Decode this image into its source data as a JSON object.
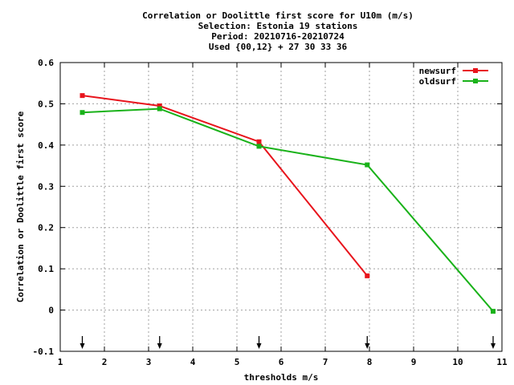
{
  "chart_data": {
    "type": "line",
    "title_lines": [
      "Correlation or Doolittle first score  for U10m (m/s)",
      "Selection: Estonia     19 stations",
      "Period: 20210716-20210724",
      "Used {00,12} + 27 30 33 36"
    ],
    "xlabel": "thresholds m/s",
    "ylabel": "Correlation or Doolittle first score",
    "xlim": [
      1,
      11
    ],
    "ylim": [
      -0.1,
      0.6
    ],
    "x_ticks": [
      1,
      2,
      3,
      4,
      5,
      6,
      7,
      8,
      9,
      10,
      11
    ],
    "y_ticks": [
      -0.1,
      0,
      0.1,
      0.2,
      0.3,
      0.4,
      0.5,
      0.6
    ],
    "y_tick_labels": [
      "-0.1",
      "0",
      "0.1",
      "0.2",
      "0.3",
      "0.4",
      "0.5",
      "0.6"
    ],
    "grid": true,
    "legend_position": "top-right",
    "series": [
      {
        "name": "newsurf",
        "color": "#e8141c",
        "x": [
          1.5,
          3.25,
          5.5,
          7.95
        ],
        "y": [
          0.52,
          0.495,
          0.408,
          0.083
        ]
      },
      {
        "name": "oldsurf",
        "color": "#19b219",
        "x": [
          1.5,
          3.25,
          5.5,
          7.95,
          10.8
        ],
        "y": [
          0.479,
          0.488,
          0.397,
          0.352,
          -0.003
        ]
      }
    ],
    "arrow_markers_x": [
      1.5,
      3.25,
      5.5,
      7.95,
      10.8
    ]
  }
}
